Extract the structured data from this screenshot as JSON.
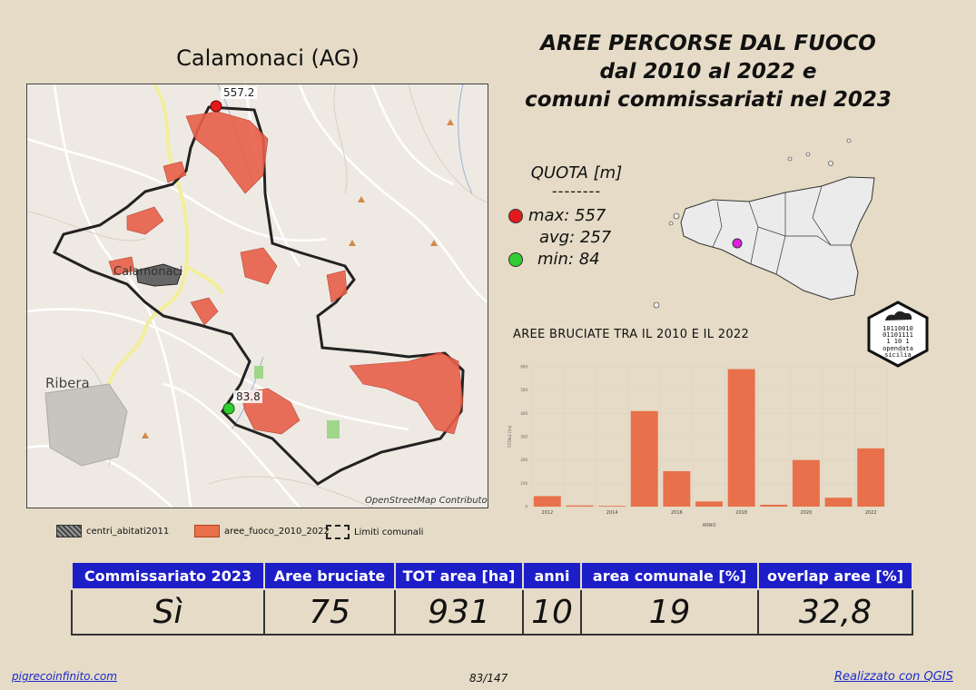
{
  "map": {
    "title": "Calamonaci (AG)",
    "label_max": "557.2",
    "label_min": "83.8",
    "town_label": "Calamonaci",
    "ribera_label": "Ribera",
    "attribution": "OpenStreetMap Contributor"
  },
  "header": {
    "title_line1": "AREE PERCORSE DAL FUOCO",
    "title_line2": "dal 2010 al 2022 e",
    "title_line3": "comuni commissariati nel 2023"
  },
  "quota": {
    "title": "QUOTA [m]",
    "separator": "--------",
    "max_label": "max: 557",
    "avg_label": "avg: 257",
    "min_label": "min: 84",
    "max_color": "#e31a1c",
    "min_color": "#33cc33"
  },
  "inset": {
    "marker_color": "#e020e0",
    "logo_line1": "opendata",
    "logo_line2": "sicilia"
  },
  "chart": {
    "title": "AREE BRUCIATE TRA IL 2010 E IL 2022",
    "bar_color": "#e8704a"
  },
  "chart_data": {
    "type": "bar",
    "title": "AREE BRUCIATE TRA IL 2010 E IL 2022",
    "xlabel": "ANNO",
    "ylabel": "TOTALE [ha]",
    "categories": [
      "2012",
      "2013",
      "2014",
      "2015",
      "2016",
      "2017",
      "2018",
      "2019",
      "2020",
      "2021",
      "2022"
    ],
    "values": [
      45,
      5,
      3,
      410,
      152,
      22,
      590,
      8,
      200,
      38,
      250
    ],
    "xtick_labels": [
      "2012",
      "2014",
      "2016",
      "2018",
      "2020",
      "2022"
    ],
    "yticks": [
      0,
      100,
      200,
      300,
      400,
      500,
      600
    ],
    "ylim": [
      0,
      600
    ],
    "grid": true
  },
  "legend": {
    "items": [
      {
        "label": "centri_abitati2011"
      },
      {
        "label": "aree_fuoco_2010_2022"
      },
      {
        "label": "Limiti comunali"
      }
    ]
  },
  "table": {
    "headers": [
      "Commissariato 2023",
      "Aree bruciate",
      "TOT area [ha]",
      "anni",
      "area comunale [%]",
      "overlap aree [%]"
    ],
    "values": [
      "Sì",
      "75",
      "931",
      "10",
      "19",
      "32,8"
    ]
  },
  "footer": {
    "left": "pigrecoinfinito.com",
    "center": "83/147",
    "right": "Realizzato con QGIS"
  }
}
